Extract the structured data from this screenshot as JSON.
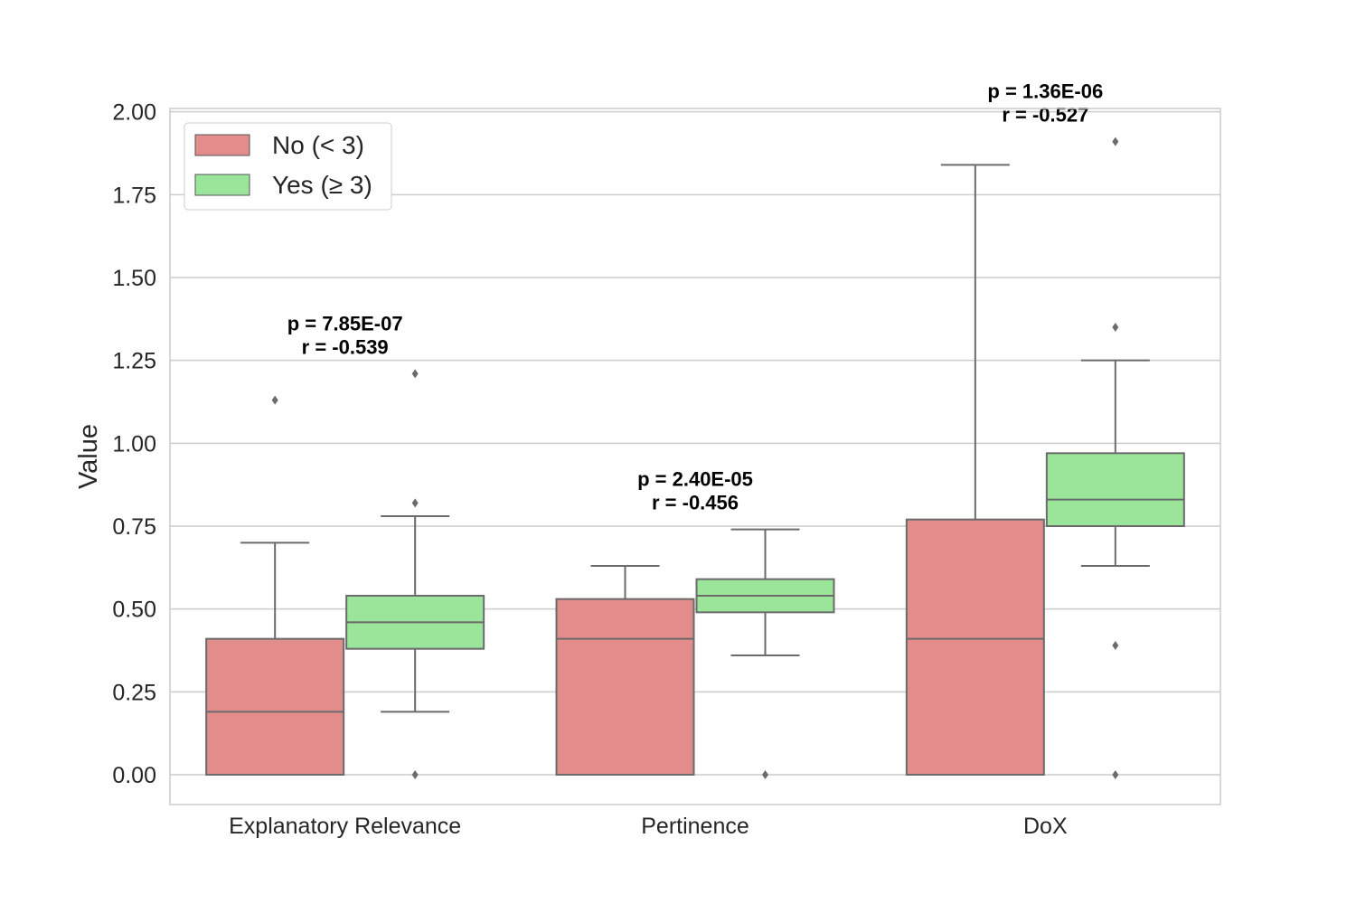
{
  "chart_data": {
    "type": "box",
    "ylabel": "Value",
    "xlabel": "",
    "ylim": [
      -0.09,
      2.01
    ],
    "yticks": [
      0.0,
      0.25,
      0.5,
      0.75,
      1.0,
      1.25,
      1.5,
      1.75,
      2.0
    ],
    "ytick_labels": [
      "0.00",
      "0.25",
      "0.50",
      "0.75",
      "1.00",
      "1.25",
      "1.50",
      "1.75",
      "2.00"
    ],
    "grid": true,
    "legend_position": "top-left",
    "categories": [
      "Explanatory Relevance",
      "Pertinence",
      "DoX"
    ],
    "series": [
      {
        "name": "No (< 3)",
        "color": "#e28c8c",
        "boxes": [
          {
            "whislo": 0.0,
            "q1": 0.0,
            "med": 0.19,
            "q3": 0.41,
            "whishi": 0.7,
            "fliers": [
              1.13
            ]
          },
          {
            "whislo": 0.0,
            "q1": 0.0,
            "med": 0.41,
            "q3": 0.53,
            "whishi": 0.63,
            "fliers": []
          },
          {
            "whislo": 0.0,
            "q1": 0.0,
            "med": 0.41,
            "q3": 0.77,
            "whishi": 1.84,
            "fliers": []
          }
        ]
      },
      {
        "name": "Yes (≥ 3)",
        "color": "#9ae59a",
        "boxes": [
          {
            "whislo": 0.19,
            "q1": 0.38,
            "med": 0.46,
            "q3": 0.54,
            "whishi": 0.78,
            "fliers": [
              0.0,
              0.82,
              1.21
            ]
          },
          {
            "whislo": 0.36,
            "q1": 0.49,
            "med": 0.54,
            "q3": 0.59,
            "whishi": 0.74,
            "fliers": [
              0.0
            ]
          },
          {
            "whislo": 0.63,
            "q1": 0.75,
            "med": 0.83,
            "q3": 0.97,
            "whishi": 1.25,
            "fliers": [
              0.0,
              0.39,
              1.35,
              1.91
            ]
          }
        ]
      }
    ],
    "annotations": [
      {
        "lines": [
          "p = 7.85E-07",
          "r = -0.539"
        ],
        "category": 0,
        "y": 1.27
      },
      {
        "lines": [
          "p = 2.40E-05",
          "r = -0.456"
        ],
        "category": 1,
        "y": 0.8
      },
      {
        "lines": [
          "p = 1.36E-06",
          "r = -0.527"
        ],
        "category": 2,
        "y": 1.97
      }
    ]
  }
}
